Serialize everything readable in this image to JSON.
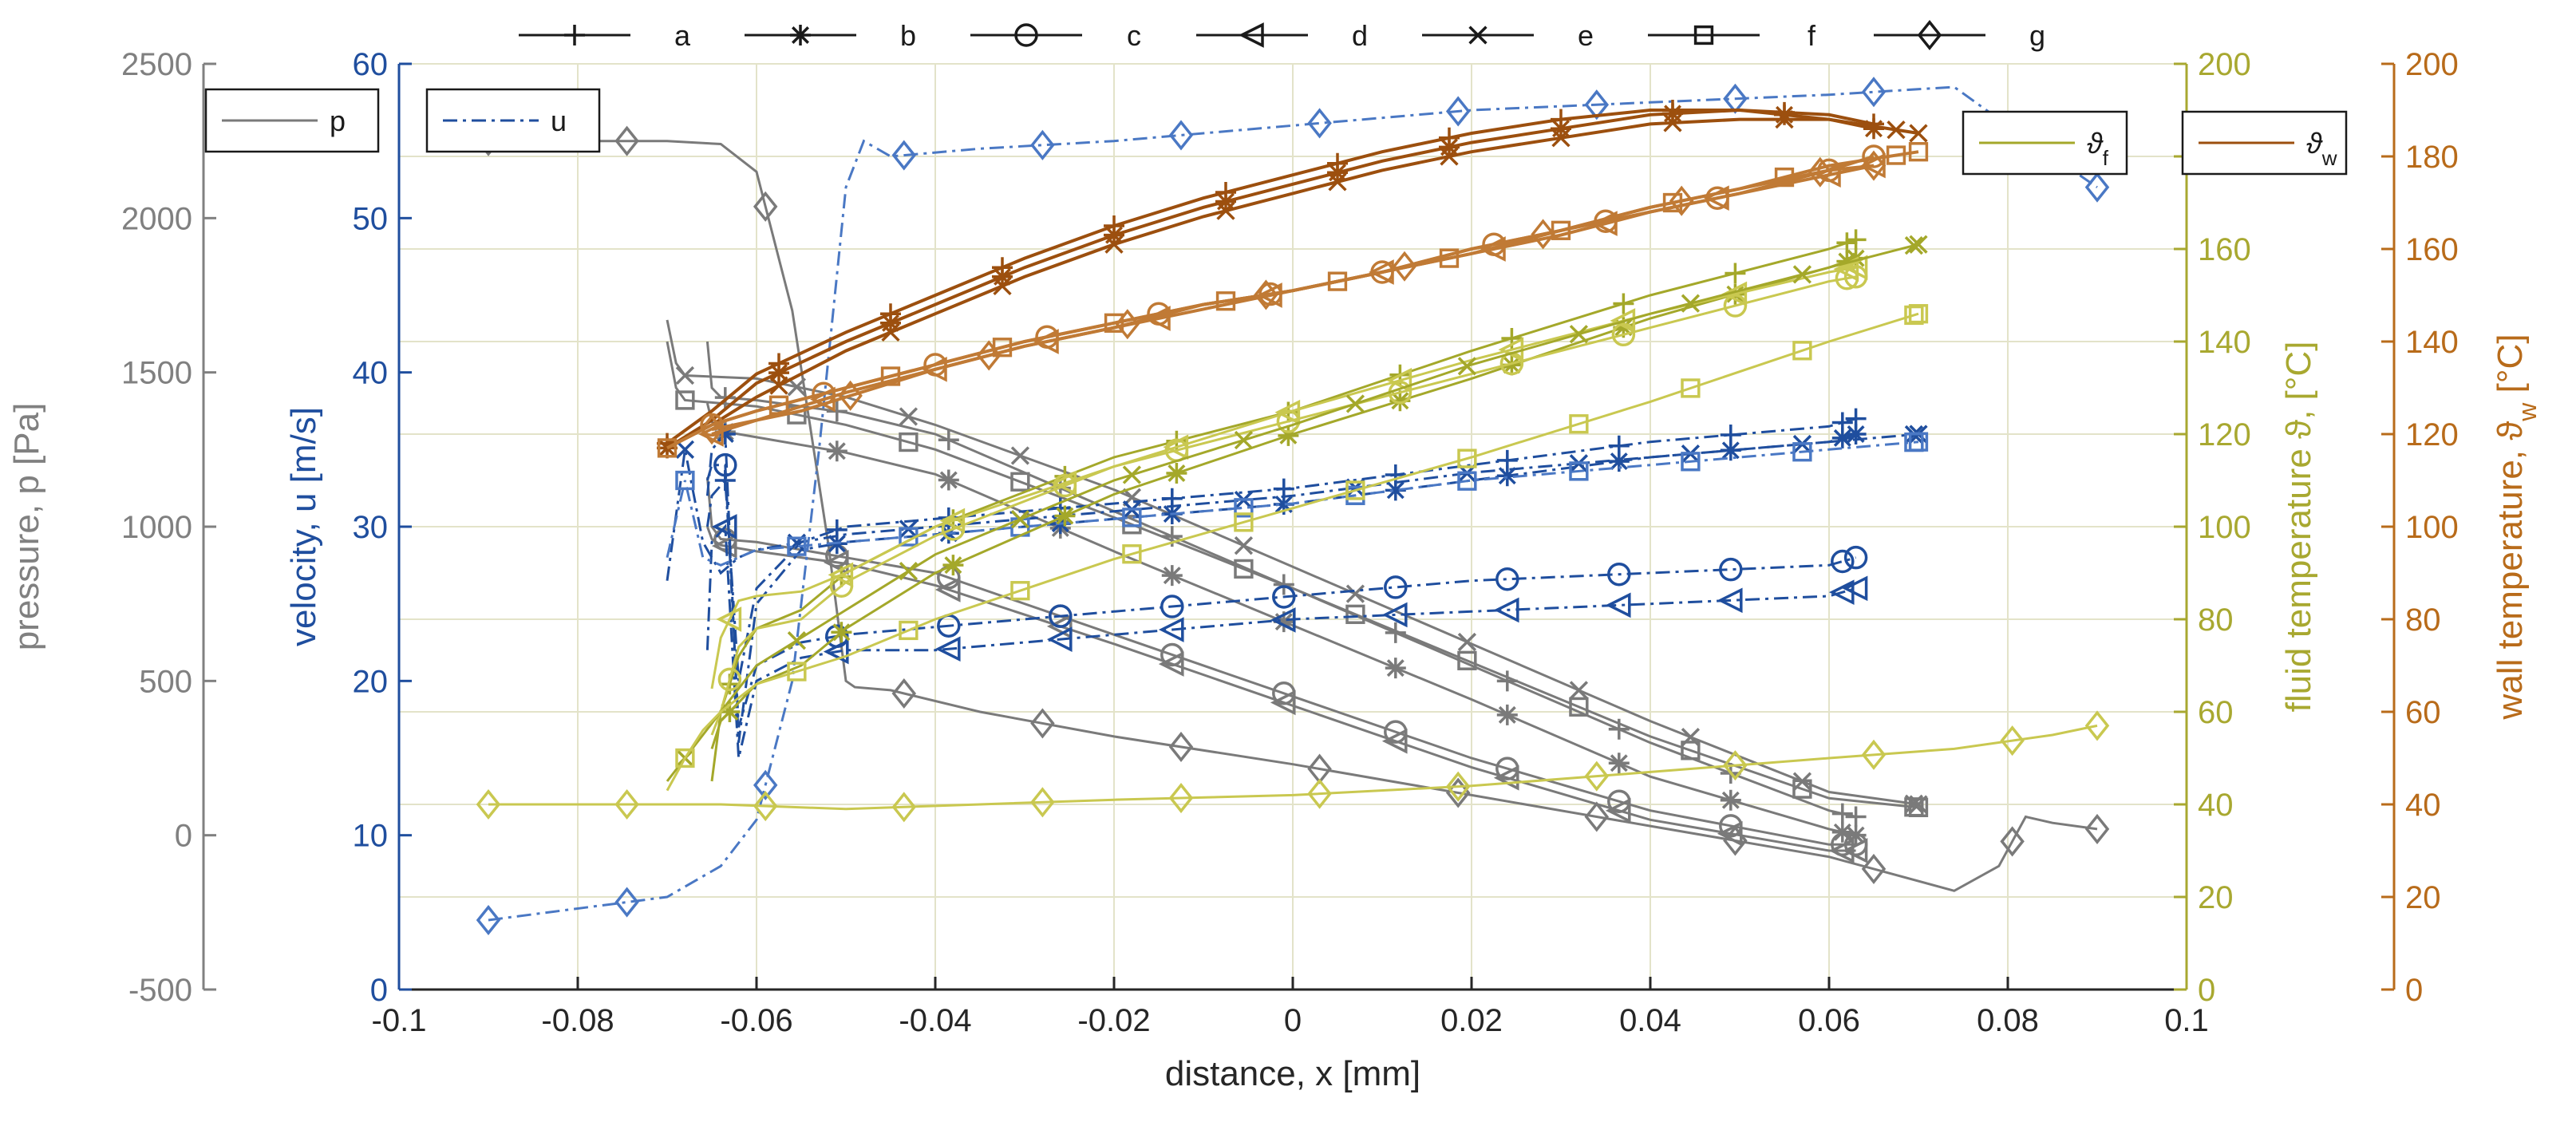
{
  "chart_data": {
    "type": "line",
    "xlabel": "distance, x [mm]",
    "xlim": [
      -0.1,
      0.1
    ],
    "xticks": [
      "-0.1",
      "-0.08",
      "-0.06",
      "-0.04",
      "-0.02",
      "0",
      "0.02",
      "0.04",
      "0.06",
      "0.08",
      "0.1"
    ],
    "axes": {
      "pressure": {
        "label": "pressure, p [Pa]",
        "lim": [
          -500,
          2500
        ],
        "ticks": [
          "-500",
          "0",
          "500",
          "1000",
          "1500",
          "2000",
          "2500"
        ],
        "color": "#808080"
      },
      "velocity": {
        "label": "velocity, u [m/s]",
        "lim": [
          0,
          60
        ],
        "ticks": [
          "0",
          "10",
          "20",
          "30",
          "40",
          "50",
          "60"
        ],
        "color": "#1f4e9e"
      },
      "fluid": {
        "label": "fluid temperature",
        "symbol": "ϑ",
        "unit": ", [°C]",
        "lim": [
          0,
          200
        ],
        "ticks": [
          "0",
          "20",
          "40",
          "60",
          "80",
          "100",
          "120",
          "140",
          "160",
          "180",
          "200"
        ],
        "color": "#a8a830"
      },
      "wall": {
        "label": "wall temperature,",
        "symbol": "ϑ",
        "subscript": "w",
        "unit": "[°C]",
        "lim": [
          0,
          200
        ],
        "ticks": [
          "0",
          "20",
          "40",
          "60",
          "80",
          "100",
          "120",
          "140",
          "160",
          "180",
          "200"
        ],
        "color": "#b86b1a"
      }
    },
    "case_legend": [
      {
        "name": "a",
        "marker": "plus"
      },
      {
        "name": "b",
        "marker": "star"
      },
      {
        "name": "c",
        "marker": "circle"
      },
      {
        "name": "d",
        "marker": "triangle-left"
      },
      {
        "name": "e",
        "marker": "x"
      },
      {
        "name": "f",
        "marker": "square"
      },
      {
        "name": "g",
        "marker": "diamond"
      }
    ],
    "variable_legend": [
      {
        "label": "p",
        "axis": "pressure"
      },
      {
        "label": "u",
        "axis": "velocity"
      },
      {
        "label": "ϑ",
        "sub": "f",
        "axis": "fluid"
      },
      {
        "label": "ϑ",
        "sub": "w",
        "axis": "wall"
      }
    ],
    "colors": {
      "pressure": "#7a7a7a",
      "velocity_main": "#1f4e9e",
      "velocity_light": "#4a78c4",
      "fluid_main": "#a4a82a",
      "fluid_light": "#c9c850",
      "wall_main": "#9c4f0e",
      "wall_light": "#c07a35",
      "grid": "#e3e3c9"
    },
    "series": [
      {
        "case": "a",
        "var": "p",
        "x": [
          -0.0655,
          -0.065,
          -0.064,
          -0.06,
          -0.05,
          -0.04,
          -0.02,
          0,
          0.02,
          0.04,
          0.06,
          0.063
        ],
        "y": [
          1600,
          1450,
          1420,
          1410,
          1370,
          1300,
          1050,
          800,
          550,
          300,
          80,
          60
        ]
      },
      {
        "case": "b",
        "var": "p",
        "x": [
          -0.0655,
          -0.065,
          -0.064,
          -0.06,
          -0.05,
          -0.04,
          -0.02,
          0,
          0.02,
          0.04,
          0.06,
          0.063
        ],
        "y": [
          1400,
          1340,
          1310,
          1290,
          1240,
          1170,
          920,
          680,
          440,
          190,
          20,
          0
        ]
      },
      {
        "case": "c",
        "var": "p",
        "x": [
          -0.0655,
          -0.065,
          -0.064,
          -0.06,
          -0.05,
          -0.04,
          -0.02,
          0,
          0.02,
          0.04,
          0.06,
          0.063
        ],
        "y": [
          1160,
          1000,
          960,
          950,
          900,
          850,
          650,
          450,
          250,
          80,
          -30,
          -30
        ]
      },
      {
        "case": "d",
        "var": "p",
        "x": [
          -0.0655,
          -0.065,
          -0.064,
          -0.06,
          -0.05,
          -0.04,
          -0.02,
          0,
          0.02,
          0.04,
          0.06,
          0.063
        ],
        "y": [
          1000,
          960,
          940,
          920,
          880,
          810,
          620,
          420,
          220,
          50,
          -50,
          -50
        ]
      },
      {
        "case": "e",
        "var": "p",
        "x": [
          -0.07,
          -0.069,
          -0.068,
          -0.06,
          -0.05,
          -0.04,
          -0.02,
          0,
          0.02,
          0.04,
          0.06,
          0.07
        ],
        "y": [
          1670,
          1530,
          1490,
          1480,
          1420,
          1330,
          1120,
          870,
          620,
          370,
          140,
          100
        ]
      },
      {
        "case": "f",
        "var": "p",
        "x": [
          -0.07,
          -0.069,
          -0.068,
          -0.06,
          -0.05,
          -0.04,
          -0.02,
          0,
          0.02,
          0.04,
          0.06,
          0.07
        ],
        "y": [
          1600,
          1450,
          1410,
          1390,
          1330,
          1250,
          1030,
          800,
          560,
          320,
          120,
          90
        ]
      },
      {
        "case": "g",
        "var": "p",
        "x": [
          -0.09,
          -0.07,
          -0.064,
          -0.06,
          -0.056,
          -0.052,
          -0.05,
          -0.049,
          -0.045,
          -0.035,
          -0.02,
          0,
          0.02,
          0.04,
          0.06,
          0.074,
          0.079,
          0.082,
          0.085,
          0.09
        ],
        "y": [
          2250,
          2250,
          2240,
          2150,
          1700,
          950,
          500,
          480,
          470,
          400,
          320,
          230,
          130,
          30,
          -70,
          -180,
          -100,
          60,
          40,
          20
        ]
      },
      {
        "case": "a",
        "var": "u",
        "x": [
          -0.0655,
          -0.065,
          -0.0635,
          -0.062,
          -0.06,
          -0.055,
          -0.05,
          -0.04,
          -0.02,
          0,
          0.02,
          0.04,
          0.06,
          0.063
        ],
        "y": [
          30,
          32,
          33,
          20,
          26,
          29,
          30,
          30.5,
          31.5,
          32.5,
          34,
          35.5,
          36.5,
          37
        ]
      },
      {
        "case": "b",
        "var": "u",
        "x": [
          -0.0655,
          -0.065,
          -0.0635,
          -0.062,
          -0.06,
          -0.055,
          -0.05,
          -0.04,
          -0.02,
          0,
          0.02,
          0.04,
          0.06,
          0.063
        ],
        "y": [
          32,
          35,
          36,
          16,
          25,
          28.5,
          29,
          29.5,
          30.5,
          31.5,
          33,
          34.5,
          35.5,
          36
        ]
      },
      {
        "case": "c",
        "var": "u",
        "x": [
          -0.0655,
          -0.065,
          -0.0635,
          -0.062,
          -0.06,
          -0.055,
          -0.05,
          -0.04,
          -0.02,
          0,
          0.02,
          0.04,
          0.06,
          0.063
        ],
        "y": [
          33,
          34,
          34,
          17,
          21,
          22.5,
          23,
          23.5,
          24.5,
          25.5,
          26.5,
          27,
          27.5,
          28
        ]
      },
      {
        "case": "d",
        "var": "u",
        "x": [
          -0.0655,
          -0.065,
          -0.0635,
          -0.062,
          -0.06,
          -0.055,
          -0.05,
          -0.04,
          -0.02,
          0,
          0.02,
          0.04,
          0.06,
          0.063
        ],
        "y": [
          22,
          29,
          30,
          15,
          20,
          21.5,
          22,
          22,
          23,
          24,
          24.5,
          25,
          25.5,
          26
        ]
      },
      {
        "case": "e",
        "var": "u",
        "x": [
          -0.07,
          -0.068,
          -0.066,
          -0.064,
          -0.062,
          -0.06,
          -0.05,
          -0.04,
          -0.02,
          0,
          0.02,
          0.04,
          0.06,
          0.07
        ],
        "y": [
          26.5,
          35,
          29,
          27,
          28,
          28.5,
          29.5,
          30,
          31,
          32,
          33.5,
          34.5,
          35.5,
          36
        ]
      },
      {
        "case": "f",
        "var": "u",
        "x": [
          -0.07,
          -0.068,
          -0.066,
          -0.064,
          -0.062,
          -0.06,
          -0.05,
          -0.04,
          -0.02,
          0,
          0.02,
          0.04,
          0.06,
          0.07
        ],
        "y": [
          28,
          33,
          28,
          27.5,
          28,
          28.5,
          29,
          29.5,
          30.5,
          31.5,
          33,
          34,
          35,
          35.5
        ]
      },
      {
        "case": "g",
        "var": "u",
        "x": [
          -0.09,
          -0.07,
          -0.064,
          -0.06,
          -0.056,
          -0.053,
          -0.05,
          -0.048,
          -0.045,
          -0.035,
          -0.02,
          0,
          0.02,
          0.04,
          0.06,
          0.074,
          0.08,
          0.085,
          0.09
        ],
        "y": [
          4.5,
          6,
          8,
          11,
          20,
          35,
          52,
          55,
          54,
          54.5,
          55,
          56,
          57,
          57.5,
          58,
          58.5,
          56,
          54,
          52
        ]
      },
      {
        "case": "a",
        "var": "fluid",
        "x": [
          -0.065,
          -0.064,
          -0.062,
          -0.06,
          -0.055,
          -0.05,
          -0.04,
          -0.02,
          0,
          0.02,
          0.04,
          0.06,
          0.063
        ],
        "y": [
          45,
          60,
          72,
          78,
          82,
          90,
          100,
          115,
          125,
          138,
          150,
          160,
          162
        ]
      },
      {
        "case": "b",
        "var": "fluid",
        "x": [
          -0.065,
          -0.064,
          -0.062,
          -0.06,
          -0.055,
          -0.05,
          -0.04,
          -0.02,
          0,
          0.02,
          0.04,
          0.06,
          0.063
        ],
        "y": [
          52,
          58,
          62,
          66,
          70,
          78,
          90,
          107,
          120,
          132,
          145,
          156,
          158
        ]
      },
      {
        "case": "c",
        "var": "fluid",
        "x": [
          -0.065,
          -0.064,
          -0.062,
          -0.06,
          -0.055,
          -0.05,
          -0.04,
          -0.02,
          0,
          0.02,
          0.04,
          0.06,
          0.063
        ],
        "y": [
          55,
          60,
          74,
          78,
          80,
          88,
          98,
          113,
          123,
          133,
          143,
          153,
          154
        ]
      },
      {
        "case": "d",
        "var": "fluid",
        "x": [
          -0.065,
          -0.064,
          -0.062,
          -0.06,
          -0.055,
          -0.05,
          -0.04,
          -0.02,
          0,
          0.02,
          0.04,
          0.06,
          0.063
        ],
        "y": [
          65,
          76,
          84,
          85,
          86,
          90,
          100,
          113,
          125,
          136,
          146,
          155,
          156
        ]
      },
      {
        "case": "e",
        "var": "fluid",
        "x": [
          -0.07,
          -0.068,
          -0.066,
          -0.064,
          -0.062,
          -0.06,
          -0.05,
          -0.04,
          -0.02,
          0,
          0.02,
          0.04,
          0.06,
          0.07
        ],
        "y": [
          45,
          50,
          55,
          60,
          65,
          70,
          82,
          94,
          110,
          122,
          135,
          146,
          156,
          161
        ]
      },
      {
        "case": "f",
        "var": "fluid",
        "x": [
          -0.07,
          -0.068,
          -0.066,
          -0.064,
          -0.062,
          -0.06,
          -0.05,
          -0.04,
          -0.02,
          0,
          0.02,
          0.04,
          0.06,
          0.07
        ],
        "y": [
          43,
          50,
          56,
          60,
          63,
          66,
          72,
          80,
          93,
          104,
          115,
          127,
          140,
          146
        ]
      },
      {
        "case": "g",
        "var": "fluid",
        "x": [
          -0.09,
          -0.07,
          -0.064,
          -0.05,
          -0.035,
          -0.02,
          0,
          0.02,
          0.04,
          0.06,
          0.074,
          0.085,
          0.09
        ],
        "y": [
          40,
          40,
          40,
          39,
          40,
          41,
          42,
          44,
          47,
          50,
          52,
          55,
          57
        ]
      },
      {
        "case": "a",
        "var": "wall",
        "x": [
          -0.07,
          -0.065,
          -0.06,
          -0.05,
          -0.04,
          -0.03,
          -0.02,
          -0.01,
          0,
          0.01,
          0.02,
          0.03,
          0.04,
          0.05,
          0.06,
          0.065
        ],
        "y": [
          118,
          125,
          133,
          142,
          150,
          158,
          165,
          171,
          176,
          181,
          185,
          188,
          190,
          190,
          189,
          187
        ]
      },
      {
        "case": "b",
        "var": "wall",
        "x": [
          -0.07,
          -0.065,
          -0.06,
          -0.05,
          -0.04,
          -0.03,
          -0.02,
          -0.01,
          0,
          0.01,
          0.02,
          0.03,
          0.04,
          0.05,
          0.06,
          0.065
        ],
        "y": [
          117,
          123,
          131,
          140,
          148,
          156,
          163,
          169,
          174,
          179,
          183,
          186,
          189,
          190,
          188,
          186
        ]
      },
      {
        "case": "e",
        "var": "wall",
        "x": [
          -0.07,
          -0.065,
          -0.06,
          -0.05,
          -0.04,
          -0.03,
          -0.02,
          -0.01,
          0,
          0.01,
          0.02,
          0.03,
          0.04,
          0.05,
          0.06,
          0.07
        ],
        "y": [
          117,
          122,
          128,
          138,
          146,
          154,
          161,
          167,
          172,
          177,
          181,
          184,
          187,
          188,
          188,
          185
        ]
      },
      {
        "case": "c",
        "var": "wall",
        "x": [
          -0.065,
          -0.06,
          -0.05,
          -0.04,
          -0.03,
          -0.02,
          -0.01,
          0,
          0.01,
          0.02,
          0.03,
          0.04,
          0.05,
          0.06,
          0.065
        ],
        "y": [
          122,
          125,
          130,
          135,
          140,
          144,
          148,
          151,
          155,
          160,
          164,
          168,
          172,
          177,
          180
        ]
      },
      {
        "case": "d",
        "var": "wall",
        "x": [
          -0.065,
          -0.06,
          -0.05,
          -0.04,
          -0.03,
          -0.02,
          -0.01,
          0,
          0.01,
          0.02,
          0.03,
          0.04,
          0.05,
          0.06,
          0.065
        ],
        "y": [
          120,
          123,
          129,
          134,
          139,
          143,
          147,
          151,
          155,
          159,
          163,
          168,
          172,
          176,
          178
        ]
      },
      {
        "case": "f",
        "var": "wall",
        "x": [
          -0.07,
          -0.065,
          -0.06,
          -0.05,
          -0.04,
          -0.03,
          -0.02,
          -0.01,
          0,
          0.01,
          0.02,
          0.03,
          0.04,
          0.05,
          0.06,
          0.07
        ],
        "y": [
          117,
          122,
          125,
          130,
          135,
          140,
          144,
          148,
          151,
          155,
          159,
          164,
          169,
          173,
          178,
          181
        ]
      },
      {
        "case": "g",
        "var": "wall",
        "x": [
          -0.065,
          -0.06,
          -0.055,
          -0.05,
          -0.04,
          -0.03,
          -0.02,
          -0.01,
          0,
          0.01,
          0.02,
          0.03,
          0.04,
          0.05,
          0.06,
          0.065
        ],
        "y": [
          121,
          123,
          125,
          128,
          134,
          139,
          143,
          148,
          151,
          155,
          160,
          164,
          169,
          173,
          177,
          178
        ]
      }
    ]
  }
}
